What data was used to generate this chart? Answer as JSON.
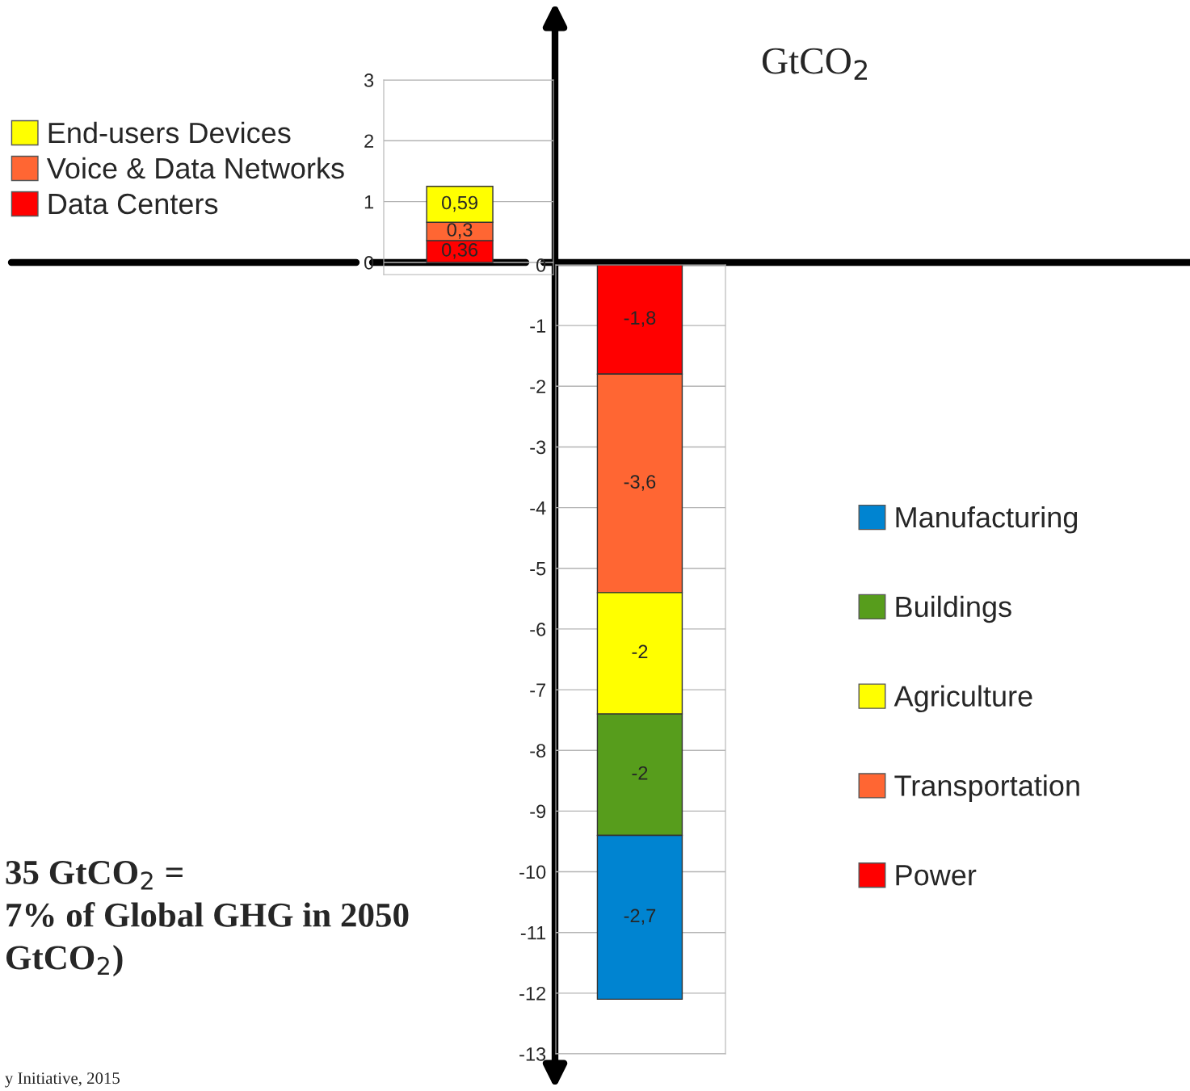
{
  "chart_data": [
    {
      "type": "bar",
      "stacked": true,
      "categories": [
        null
      ],
      "ylim": [
        -0.2,
        3
      ],
      "yticks": [
        0,
        1,
        2,
        3
      ],
      "grid": "y",
      "legend": "top left",
      "series": [
        {
          "name": "Data Centers",
          "color": "#ff0000",
          "values": [
            0.36
          ],
          "value_labels": [
            "0,36"
          ]
        },
        {
          "name": "Voice & Data Networks",
          "color": "#ff6633",
          "values": [
            0.3
          ],
          "value_labels": [
            "0,3"
          ]
        },
        {
          "name": "End-users Devices",
          "color": "#ffff00",
          "values": [
            0.59
          ],
          "value_labels": [
            "0,59"
          ]
        }
      ],
      "annotations": [
        "35 GtCO$_{2}$ =\n7% of Global GHG in 2050\nGtCO$_{2}$)",
        "y Initiative, 2015"
      ]
    },
    {
      "type": "bar",
      "stacked": true,
      "categories": [
        null
      ],
      "ylim": [
        -13,
        0
      ],
      "yticks": [
        0,
        -1,
        -2,
        -3,
        -4,
        -5,
        -6,
        -7,
        -8,
        -9,
        -10,
        -11,
        -12,
        -13
      ],
      "grid": "y",
      "legend": "right",
      "ylabel": "GtCO$_{2}$",
      "series": [
        {
          "name": "Power",
          "color": "#ff0000",
          "values": [
            -1.8
          ],
          "value_labels": [
            "-1,8"
          ]
        },
        {
          "name": "Transportation",
          "color": "#ff6633",
          "values": [
            -3.6
          ],
          "value_labels": [
            "-3,6"
          ]
        },
        {
          "name": "Agriculture",
          "color": "#ffff00",
          "values": [
            -2
          ],
          "value_labels": [
            "-2"
          ]
        },
        {
          "name": "Buildings",
          "color": "#579d1c",
          "values": [
            -2
          ],
          "value_labels": [
            "-2"
          ]
        },
        {
          "name": "Manufacturing",
          "color": "#0084d1",
          "values": [
            -2.7
          ],
          "value_labels": [
            "-2,7"
          ]
        }
      ]
    }
  ]
}
